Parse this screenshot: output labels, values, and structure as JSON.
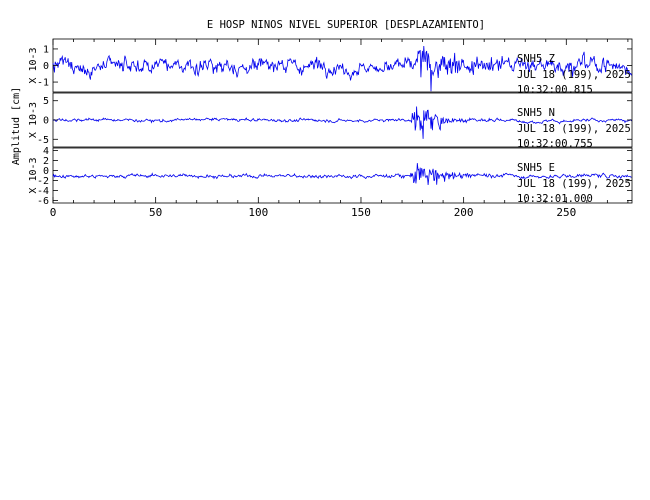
{
  "title": "E HOSP NINOS NIVEL SUPERIOR [DESPLAZAMIENTO]",
  "ylabel": "Amplitud [cm]",
  "colors": {
    "trace": "#0000ee",
    "axes": "#000000",
    "background": "#ffffff"
  },
  "chart_data": {
    "type": "line",
    "title": "E HOSP NINOS NIVEL SUPERIOR [DESPLAZAMIENTO]",
    "xlabel": "",
    "ylabel": "Amplitud [cm]",
    "xlim": [
      0,
      282
    ],
    "xticks": [
      0,
      50,
      100,
      150,
      200,
      250
    ],
    "grid": false,
    "event_onset_x": 174,
    "event_peak_x": 179,
    "panels": [
      {
        "station": "SNH5",
        "component": "Z",
        "date": "JUL 18 (199), 2025",
        "time": "10:32:00.815",
        "scale_label": "X 10-3",
        "yticks": [
          -1,
          0,
          1
        ],
        "ylim": [
          -1.6,
          1.6
        ],
        "background_amplitude": 0.7,
        "event_amplitude": 1.6
      },
      {
        "station": "SNH5",
        "component": "N",
        "date": "JUL 18 (199), 2025",
        "time": "10:32:00.755",
        "scale_label": "X 10-3",
        "yticks": [
          -5,
          0,
          5
        ],
        "ylim": [
          -7,
          7
        ],
        "background_amplitude": 0.5,
        "event_amplitude": 7
      },
      {
        "station": "SNH5",
        "component": "E",
        "date": "JUL 18 (199), 2025",
        "time": "10:32:01.000",
        "scale_label": "X 10-3",
        "yticks": [
          -6,
          -4,
          -2,
          0,
          2,
          4
        ],
        "ylim": [
          -6.5,
          4.5
        ],
        "background_amplitude": 0.6,
        "event_amplitude": 4.5
      }
    ]
  }
}
